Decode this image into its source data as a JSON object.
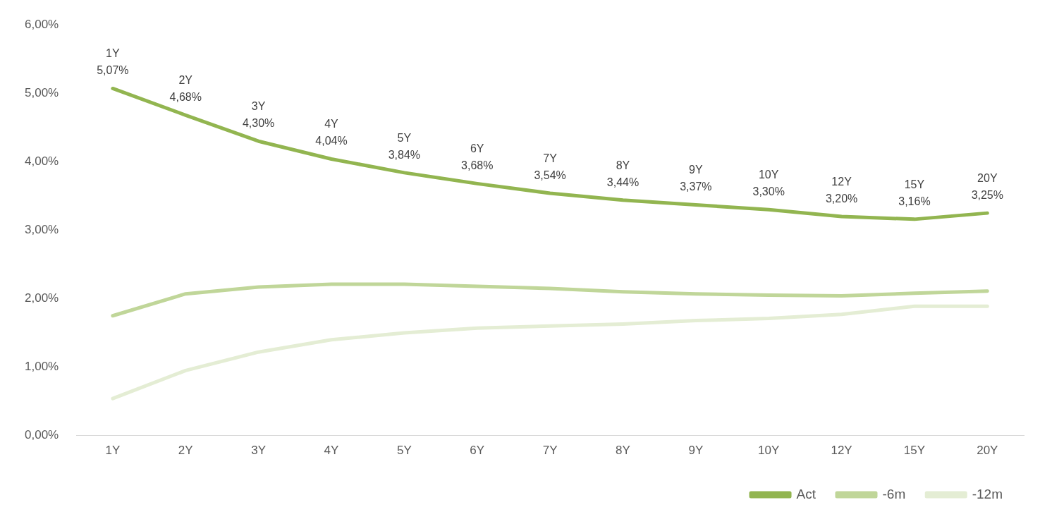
{
  "chart_data": {
    "type": "line",
    "categories": [
      "1Y",
      "2Y",
      "3Y",
      "4Y",
      "5Y",
      "6Y",
      "7Y",
      "8Y",
      "9Y",
      "10Y",
      "12Y",
      "15Y",
      "20Y"
    ],
    "series": [
      {
        "name": "Act",
        "color": "#92b550",
        "values": [
          5.07,
          4.68,
          4.3,
          4.04,
          3.84,
          3.68,
          3.54,
          3.44,
          3.37,
          3.3,
          3.2,
          3.16,
          3.25
        ],
        "value_labels": [
          "5,07%",
          "4,68%",
          "4,30%",
          "4,04%",
          "3,84%",
          "3,68%",
          "3,54%",
          "3,44%",
          "3,37%",
          "3,30%",
          "3,20%",
          "3,16%",
          "3,25%"
        ]
      },
      {
        "name": "-6m",
        "color": "#c0d699",
        "values": [
          1.75,
          2.07,
          2.17,
          2.21,
          2.21,
          2.18,
          2.15,
          2.1,
          2.07,
          2.05,
          2.04,
          2.08,
          2.11
        ]
      },
      {
        "name": "-12m",
        "color": "#e4edd4",
        "values": [
          0.54,
          0.95,
          1.22,
          1.4,
          1.5,
          1.57,
          1.6,
          1.63,
          1.68,
          1.71,
          1.77,
          1.89,
          1.89
        ]
      }
    ],
    "ylim": [
      0,
      6
    ],
    "yticks": [
      {
        "value": 0,
        "label": "0,00%"
      },
      {
        "value": 1,
        "label": "1,00%"
      },
      {
        "value": 2,
        "label": "2,00%"
      },
      {
        "value": 3,
        "label": "3,00%"
      },
      {
        "value": 4,
        "label": "4,00%"
      },
      {
        "value": 5,
        "label": "5,00%"
      },
      {
        "value": 6,
        "label": "6,00%"
      }
    ],
    "grid": false,
    "legend": "bottom right",
    "marker": "none",
    "line_style": "solid"
  }
}
